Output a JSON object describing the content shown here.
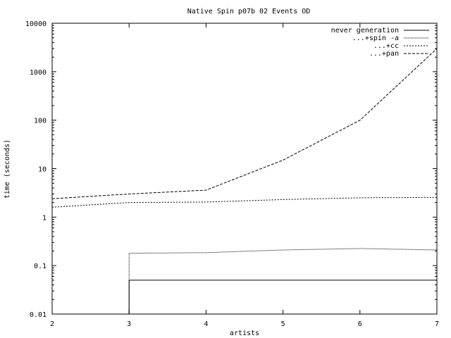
{
  "chart_data": {
    "type": "line",
    "title": "Native Spin p07b 02 Events OD",
    "xlabel": "artists",
    "ylabel": "time (seconds)",
    "xlim": [
      2,
      7
    ],
    "ylim": [
      0.01,
      10000
    ],
    "yscale": "log",
    "grid": false,
    "legend_position": "top-right",
    "x_ticks": [
      {
        "value": 2,
        "label": "2"
      },
      {
        "value": 3,
        "label": "3"
      },
      {
        "value": 4,
        "label": "4"
      },
      {
        "value": 5,
        "label": "5"
      },
      {
        "value": 6,
        "label": "6"
      },
      {
        "value": 7,
        "label": "7"
      }
    ],
    "y_ticks": [
      {
        "value": 0.01,
        "label": "0.01"
      },
      {
        "value": 0.1,
        "label": "0.1"
      },
      {
        "value": 1,
        "label": "1"
      },
      {
        "value": 10,
        "label": "10"
      },
      {
        "value": 100,
        "label": "100"
      },
      {
        "value": 1000,
        "label": "1000"
      },
      {
        "value": 10000,
        "label": "10000"
      }
    ],
    "series": [
      {
        "name": "never generation",
        "style": "steps",
        "dash": "",
        "points": [
          [
            3,
            0.01
          ],
          [
            3,
            0.05
          ],
          [
            7,
            0.05
          ]
        ]
      },
      {
        "name": "...+spin -a",
        "style": "lines",
        "dash": "1,1",
        "points": [
          [
            3,
            0.01
          ],
          [
            3,
            0.18
          ],
          [
            4,
            0.185
          ],
          [
            5,
            0.21
          ],
          [
            6,
            0.225
          ],
          [
            7,
            0.21
          ]
        ]
      },
      {
        "name": "...+cc",
        "style": "lines",
        "dash": "2,2",
        "points": [
          [
            2,
            1.6
          ],
          [
            3,
            2.0
          ],
          [
            4,
            2.05
          ],
          [
            5,
            2.3
          ],
          [
            6,
            2.5
          ],
          [
            7,
            2.55
          ]
        ]
      },
      {
        "name": "...+pan",
        "style": "lines",
        "dash": "4,2",
        "points": [
          [
            2,
            2.4
          ],
          [
            3,
            3.0
          ],
          [
            4,
            3.6
          ],
          [
            5,
            15
          ],
          [
            6,
            100
          ],
          [
            7,
            3000
          ]
        ]
      }
    ]
  }
}
